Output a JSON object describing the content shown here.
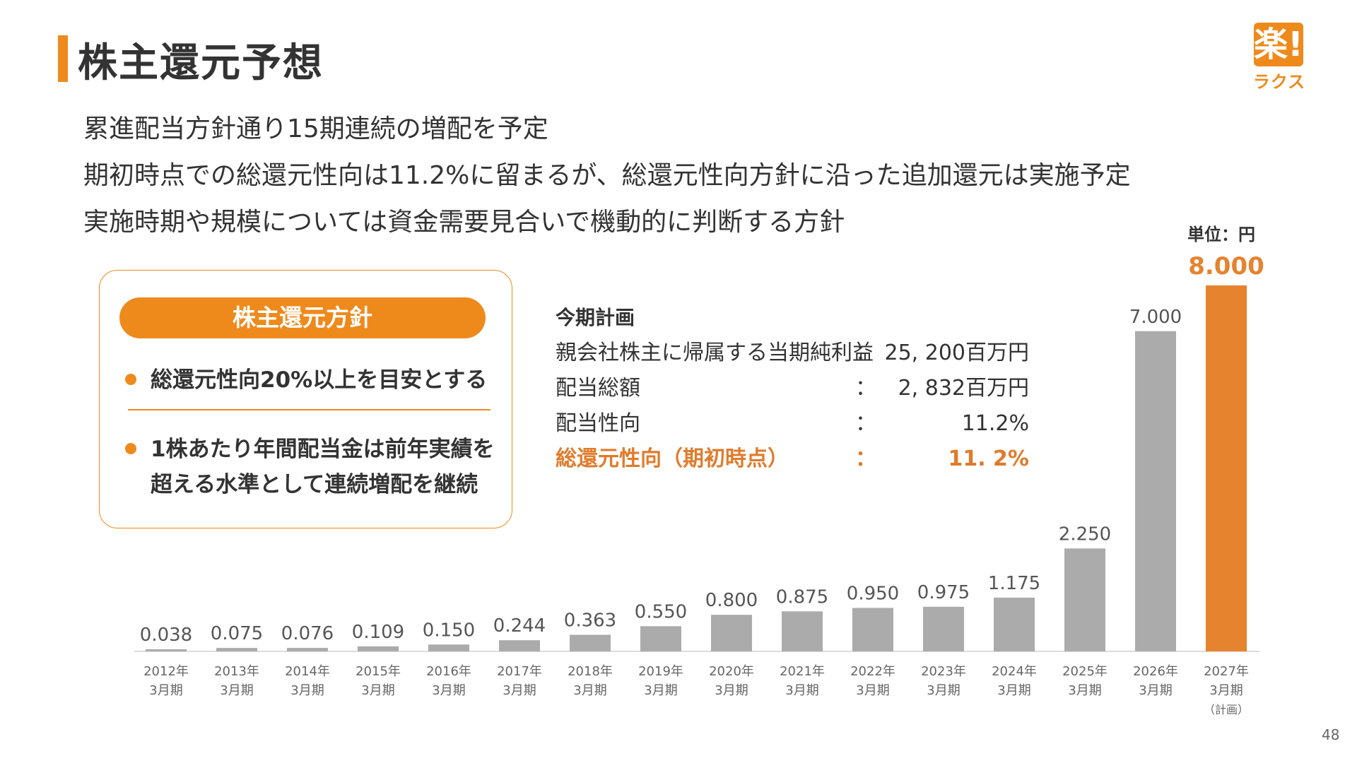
{
  "header": {
    "title": "株主還元予想"
  },
  "logo": {
    "mark": "楽!",
    "text": "ラクス"
  },
  "bullets": [
    "累進配当方針通り15期連続の増配を予定",
    "期初時点での総還元性向は11.2%に留まるが、総還元性向方針に沿った追加還元は実施予定",
    "実施時期や規模については資金需要見合いで機動的に判断する方針"
  ],
  "policy": {
    "title": "株主還元方針",
    "item1": "総還元性向20%以上を目安とする",
    "item2_line1": "1株あたり年間配当金は前年実績を",
    "item2_line2": "超える水準として連続増配を継続"
  },
  "plan": {
    "heading": "今期計画",
    "rows": [
      {
        "label": "親会社株主に帰属する当期純利益",
        "colon": "：",
        "value": "25, 200百万円"
      },
      {
        "label": "配当総額",
        "colon": "：",
        "value": "2, 832百万円"
      },
      {
        "label": "配当性向",
        "colon": "：",
        "value": "11.2%"
      },
      {
        "label": "総還元性向（期初時点）",
        "colon": "：",
        "value": "11. 2%"
      }
    ]
  },
  "unit_label": "単位：円",
  "page_number": "48",
  "colors": {
    "accent": "#EE8A1C",
    "bar": "#ABABAB",
    "highlight_bar": "#E5832F",
    "text": "#333333"
  },
  "chart_data": {
    "type": "bar",
    "categories": [
      [
        "2012年",
        "3月期"
      ],
      [
        "2013年",
        "3月期"
      ],
      [
        "2014年",
        "3月期"
      ],
      [
        "2015年",
        "3月期"
      ],
      [
        "2016年",
        "3月期"
      ],
      [
        "2017年",
        "3月期"
      ],
      [
        "2018年",
        "3月期"
      ],
      [
        "2019年",
        "3月期"
      ],
      [
        "2020年",
        "3月期"
      ],
      [
        "2021年",
        "3月期"
      ],
      [
        "2022年",
        "3月期"
      ],
      [
        "2023年",
        "3月期"
      ],
      [
        "2024年",
        "3月期"
      ],
      [
        "2025年",
        "3月期"
      ],
      [
        "2026年",
        "3月期"
      ],
      [
        "2027年",
        "3月期",
        "（計画）"
      ]
    ],
    "values": [
      0.038,
      0.075,
      0.076,
      0.109,
      0.15,
      0.244,
      0.363,
      0.55,
      0.8,
      0.875,
      0.95,
      0.975,
      1.175,
      2.25,
      7.0,
      8.0
    ],
    "labels": [
      "0.038",
      "0.075",
      "0.076",
      "0.109",
      "0.150",
      "0.244",
      "0.363",
      "0.550",
      "0.800",
      "0.875",
      "0.950",
      "0.975",
      "1.175",
      "2.250",
      "7.000",
      "8.000"
    ],
    "highlight_index": 15,
    "ylim": [
      0,
      8
    ],
    "grid": false,
    "legend": "none"
  }
}
